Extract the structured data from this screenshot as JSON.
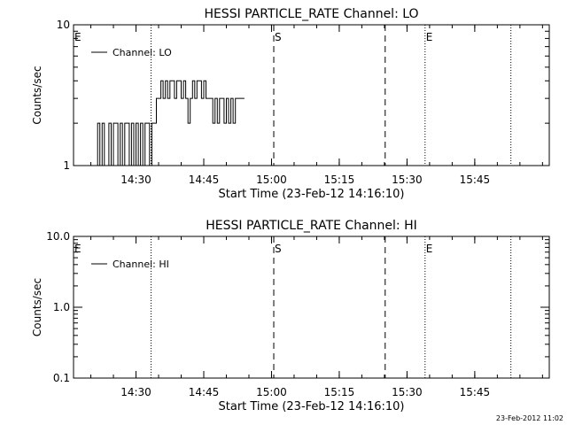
{
  "footer": {
    "timestamp": "23-Feb-2012 11:02"
  },
  "chart_data": [
    {
      "type": "line",
      "title": "HESSI PARTICLE_RATE Channel: LO",
      "xlabel": "Start Time (23-Feb-12 14:16:10)",
      "ylabel": "Counts/sec",
      "y_scale": "log",
      "xlim": [
        "14:16:10",
        "16:01:30"
      ],
      "ylim": [
        1,
        10
      ],
      "x_ticks": [
        "14:30",
        "14:45",
        "15:00",
        "15:15",
        "15:30",
        "15:45"
      ],
      "y_ticks": [
        "1",
        "10"
      ],
      "legend": {
        "position": "top-left",
        "entries": [
          "Channel: LO"
        ]
      },
      "series": [
        {
          "name": "Channel: LO",
          "x": [
            "14:21:00",
            "14:21:30",
            "14:22:00",
            "14:22:30",
            "14:23:00",
            "14:23:30",
            "14:24:00",
            "14:24:30",
            "14:25:00",
            "14:25:30",
            "14:26:00",
            "14:26:30",
            "14:27:00",
            "14:27:30",
            "14:28:00",
            "14:28:30",
            "14:29:00",
            "14:29:30",
            "14:30:00",
            "14:30:30",
            "14:31:00",
            "14:31:30",
            "14:32:00",
            "14:32:30",
            "14:33:00",
            "14:33:30",
            "14:34:00",
            "14:34:30",
            "14:35:00",
            "14:35:30",
            "14:36:00",
            "14:36:30",
            "14:37:00",
            "14:37:30",
            "14:38:00",
            "14:38:30",
            "14:39:00",
            "14:39:30",
            "14:40:00",
            "14:40:30",
            "14:41:00",
            "14:41:30",
            "14:42:00",
            "14:42:30",
            "14:43:00",
            "14:43:30",
            "14:44:00",
            "14:44:30",
            "14:45:00",
            "14:45:30",
            "14:46:00",
            "14:46:30",
            "14:47:00",
            "14:47:30",
            "14:48:00",
            "14:48:30",
            "14:49:00",
            "14:49:30",
            "14:50:00",
            "14:50:30",
            "14:51:00",
            "14:51:30",
            "14:52:00",
            "14:52:30",
            "14:53:00",
            "14:53:30"
          ],
          "values": [
            1,
            2,
            1,
            2,
            1,
            1,
            2,
            1,
            2,
            2,
            1,
            2,
            1,
            2,
            2,
            1,
            2,
            1,
            2,
            1,
            2,
            1,
            2,
            2,
            1,
            2,
            2,
            3,
            3,
            4,
            3,
            4,
            3,
            4,
            4,
            3,
            4,
            4,
            3,
            4,
            3,
            2,
            3,
            4,
            3,
            4,
            4,
            3,
            4,
            3,
            3,
            3,
            2,
            3,
            2,
            3,
            3,
            2,
            3,
            2,
            3,
            2,
            3,
            3,
            3,
            3
          ]
        }
      ],
      "annotations": [
        {
          "label": "E",
          "x": "14:16:10"
        },
        {
          "label": "S",
          "x": "15:00:30"
        },
        {
          "label": "E",
          "x": "15:34:00"
        }
      ],
      "vertical_lines": [
        {
          "x": "14:33:20",
          "style": "dotted"
        },
        {
          "x": "15:00:30",
          "style": "dashed"
        },
        {
          "x": "15:25:10",
          "style": "dashed"
        },
        {
          "x": "15:34:00",
          "style": "dotted"
        },
        {
          "x": "15:53:00",
          "style": "dotted"
        }
      ]
    },
    {
      "type": "line",
      "title": "HESSI PARTICLE_RATE Channel: HI",
      "xlabel": "Start Time (23-Feb-12 14:16:10)",
      "ylabel": "Counts/sec",
      "y_scale": "log",
      "xlim": [
        "14:16:10",
        "16:01:30"
      ],
      "ylim": [
        0.1,
        10
      ],
      "x_ticks": [
        "14:30",
        "14:45",
        "15:00",
        "15:15",
        "15:30",
        "15:45"
      ],
      "y_ticks": [
        "0.1",
        "1.0",
        "10.0"
      ],
      "legend": {
        "position": "top-left",
        "entries": [
          "Channel: HI"
        ]
      },
      "series": [
        {
          "name": "Channel: HI",
          "x": [],
          "values": []
        }
      ],
      "annotations": [
        {
          "label": "E",
          "x": "14:16:10"
        },
        {
          "label": "S",
          "x": "15:00:30"
        },
        {
          "label": "E",
          "x": "15:34:00"
        }
      ],
      "vertical_lines": [
        {
          "x": "14:33:20",
          "style": "dotted"
        },
        {
          "x": "15:00:30",
          "style": "dashed"
        },
        {
          "x": "15:25:10",
          "style": "dashed"
        },
        {
          "x": "15:34:00",
          "style": "dotted"
        },
        {
          "x": "15:53:00",
          "style": "dotted"
        }
      ]
    }
  ]
}
